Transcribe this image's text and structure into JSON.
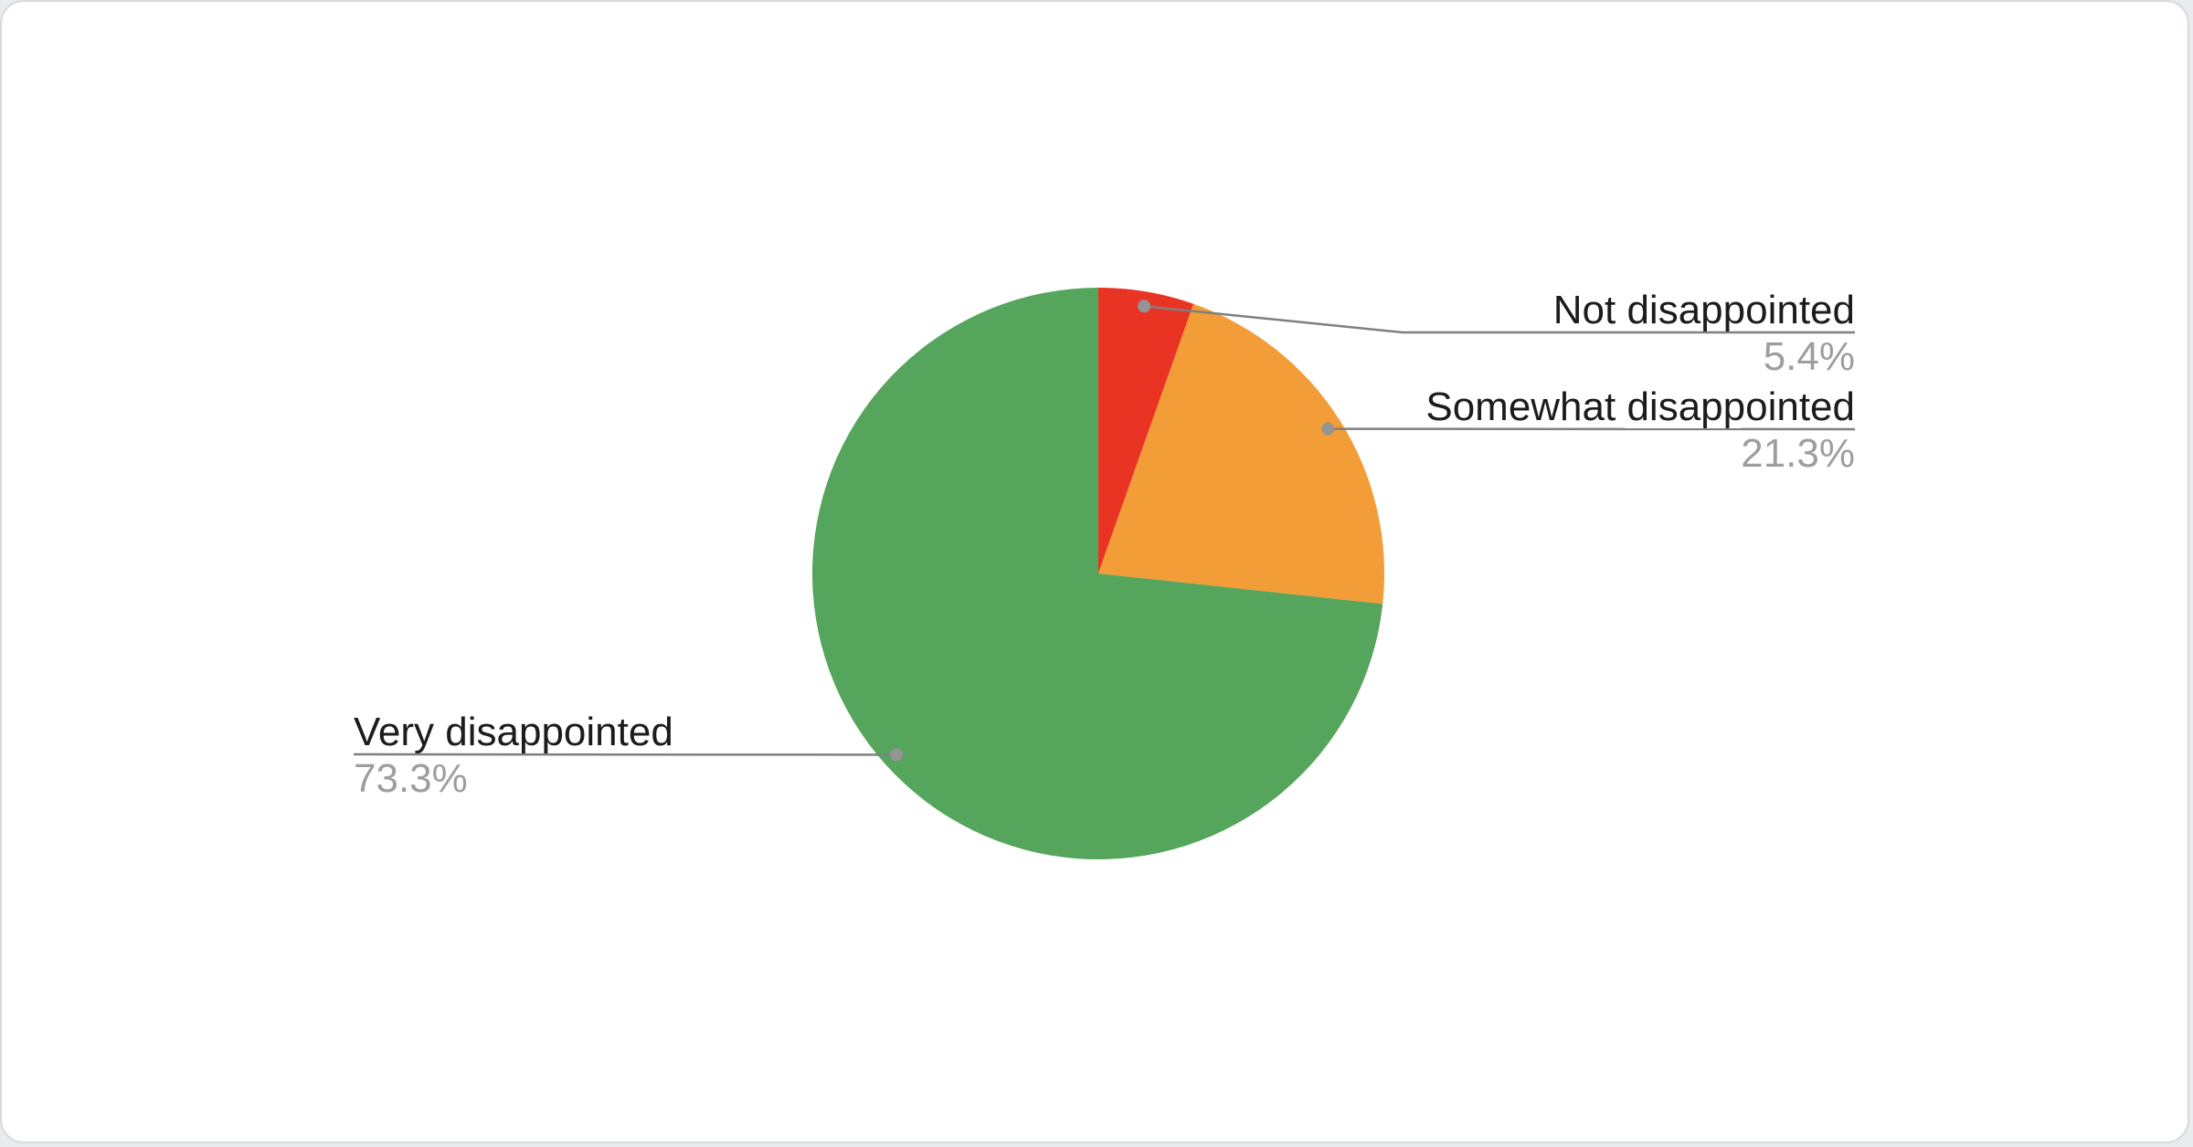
{
  "chart_data": {
    "type": "pie",
    "title": "",
    "categories": [
      "Not disappointed",
      "Somewhat disappointed",
      "Very disappointed"
    ],
    "values": [
      5.4,
      21.3,
      73.3
    ],
    "slices": [
      {
        "label": "Not disappointed",
        "value": 5.4,
        "percent_label": "5.4%",
        "color": "#ea3423"
      },
      {
        "label": "Somewhat disappointed",
        "value": 21.3,
        "percent_label": "21.3%",
        "color": "#f29d38"
      },
      {
        "label": "Very disappointed",
        "value": 73.3,
        "percent_label": "73.3%",
        "color": "#56a55c"
      }
    ],
    "start_angle_deg": 0,
    "direction": "clockwise",
    "legend_position": "labeled-callouts",
    "label_color": "#1c1c1c",
    "percent_color": "#9e9e9e",
    "leader_line_color": "#7f7f7f",
    "leader_dot_color": "#949494",
    "card_background": "#ffffff",
    "card_border_color": "#d6dadf"
  }
}
